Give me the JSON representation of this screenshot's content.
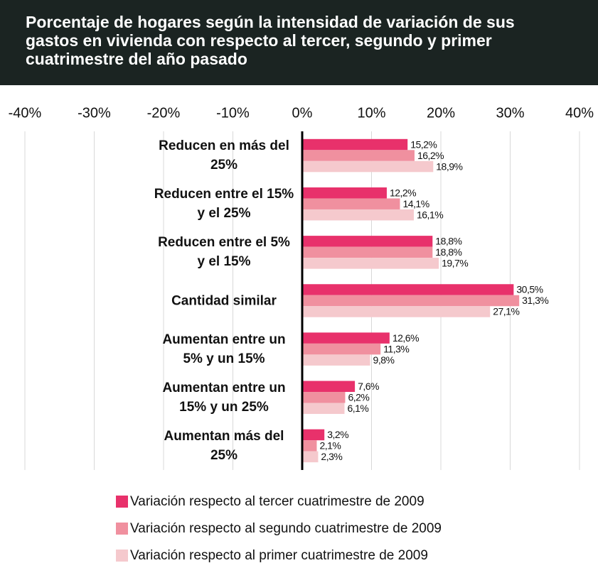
{
  "chart_data": {
    "type": "barh",
    "title": "Porcentaje de hogares según la intensidad de variación de sus gastos en vivienda con respecto al tercer, segundo y primer cuatrimestre del año pasado",
    "categories": [
      "Reducen en más del 25%",
      "Reducen entre el 15% y el 25%",
      "Reducen entre el 5% y el 15%",
      "Cantidad similar",
      "Aumentan entre un 5% y un 15%",
      "Aumentan entre un 15% y un 25%",
      "Aumentan más del 25%"
    ],
    "series": [
      {
        "name": "Variación respecto al tercer cuatrimestre de 2009",
        "color": "#e8316b",
        "values": [
          15.2,
          12.2,
          18.8,
          30.5,
          12.6,
          7.6,
          3.2
        ],
        "value_labels": [
          "15,2%",
          "12,2%",
          "18,8%",
          "30,5%",
          "12,6%",
          "7,6%",
          "3,2%"
        ]
      },
      {
        "name": "Variación respecto al segundo cuatrimestre de 2009",
        "color": "#f0909f",
        "values": [
          16.2,
          14.1,
          18.8,
          31.3,
          11.3,
          6.2,
          2.1
        ],
        "value_labels": [
          "16,2%",
          "14,1%",
          "18,8%",
          "31,3%",
          "11,3%",
          "6,2%",
          "2,1%"
        ]
      },
      {
        "name": "Variación respecto al primer cuatrimestre de 2009",
        "color": "#f5c9cd",
        "values": [
          18.9,
          16.1,
          19.7,
          27.1,
          9.8,
          6.1,
          2.3
        ],
        "value_labels": [
          "18,9%",
          "16,1%",
          "19,7%",
          "27,1%",
          "9,8%",
          "6,1%",
          "2,3%"
        ]
      }
    ],
    "xlim": [
      -40,
      40
    ],
    "xticks": [
      {
        "value": -40,
        "label": "-40%"
      },
      {
        "value": -30,
        "label": "-30%"
      },
      {
        "value": -20,
        "label": "-20%"
      },
      {
        "value": -10,
        "label": "-10%"
      },
      {
        "value": 0,
        "label": "0%"
      },
      {
        "value": 10,
        "label": "10%"
      },
      {
        "value": 20,
        "label": "20%"
      },
      {
        "value": 30,
        "label": "30%"
      },
      {
        "value": 40,
        "label": "40%"
      }
    ],
    "grid": true
  }
}
